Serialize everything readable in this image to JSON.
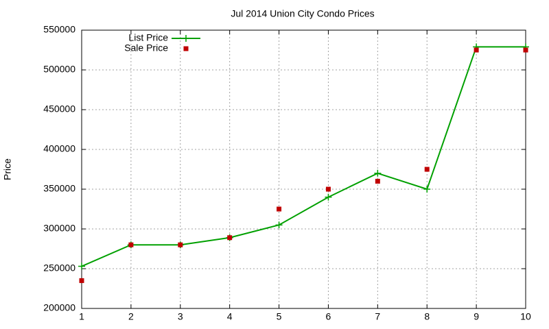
{
  "chart_data": {
    "type": "line",
    "title": "Jul 2014 Union City Condo Prices",
    "ylabel": "Price",
    "x": [
      1,
      2,
      3,
      4,
      5,
      6,
      7,
      8,
      9,
      10
    ],
    "series": [
      {
        "name": "List Price",
        "color": "#00a000",
        "marker": "plus",
        "line": true,
        "values": [
          253000,
          280000,
          280000,
          289000,
          305000,
          340000,
          370000,
          350000,
          529000,
          529000
        ]
      },
      {
        "name": "Sale Price",
        "color": "#c00000",
        "marker": "square",
        "line": false,
        "values": [
          235000,
          280000,
          280000,
          289000,
          325000,
          350000,
          360000,
          375000,
          525000,
          525000
        ]
      }
    ],
    "xlim": [
      1,
      10
    ],
    "xticks": [
      1,
      2,
      3,
      4,
      5,
      6,
      7,
      8,
      9,
      10
    ],
    "ylim": [
      200000,
      550000
    ],
    "yticks": [
      200000,
      250000,
      300000,
      350000,
      400000,
      450000,
      500000,
      550000
    ],
    "grid": true,
    "legend": "top-left"
  }
}
